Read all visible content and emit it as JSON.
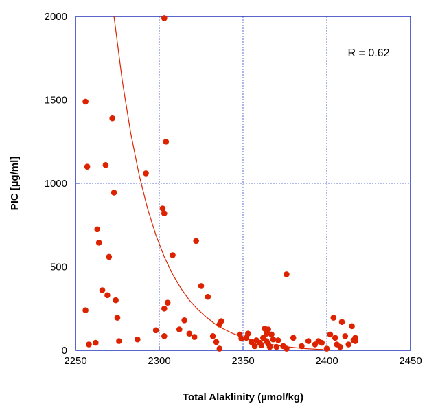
{
  "chart_data": {
    "type": "scatter",
    "title": "",
    "xlabel": "Total Alaklinity (µmol/kg)",
    "ylabel": "PIC [µg/ml]",
    "xlim": [
      2250,
      2450
    ],
    "ylim": [
      0,
      2000
    ],
    "xticks": [
      "2250",
      "2300",
      "2350",
      "2400",
      "2450"
    ],
    "yticks": [
      "0",
      "500",
      "1000",
      "1500",
      "2000"
    ],
    "grid": true,
    "annotation": "R = 0.62",
    "colors": {
      "points": "#dd2200",
      "fit": "#dd2200",
      "grid": "#3344cc",
      "frame": "#2233bb"
    },
    "points": [
      [
        2256,
        1490
      ],
      [
        2257,
        1100
      ],
      [
        2256,
        240
      ],
      [
        2258,
        35
      ],
      [
        2262,
        45
      ],
      [
        2263,
        725
      ],
      [
        2264,
        645
      ],
      [
        2266,
        360
      ],
      [
        2268,
        1110
      ],
      [
        2269,
        330
      ],
      [
        2270,
        560
      ],
      [
        2272,
        1390
      ],
      [
        2273,
        945
      ],
      [
        2274,
        300
      ],
      [
        2275,
        195
      ],
      [
        2276,
        55
      ],
      [
        2287,
        65
      ],
      [
        2292,
        1060
      ],
      [
        2298,
        120
      ],
      [
        2302,
        850
      ],
      [
        2303,
        820
      ],
      [
        2303,
        250
      ],
      [
        2303,
        1990
      ],
      [
        2304,
        1250
      ],
      [
        2303,
        85
      ],
      [
        2305,
        285
      ],
      [
        2308,
        570
      ],
      [
        2312,
        125
      ],
      [
        2315,
        180
      ],
      [
        2318,
        100
      ],
      [
        2321,
        80
      ],
      [
        2322,
        655
      ],
      [
        2325,
        385
      ],
      [
        2329,
        320
      ],
      [
        2332,
        85
      ],
      [
        2334,
        50
      ],
      [
        2336,
        155
      ],
      [
        2337,
        175
      ],
      [
        2336,
        10
      ],
      [
        2348,
        95
      ],
      [
        2349,
        70
      ],
      [
        2352,
        75
      ],
      [
        2353,
        100
      ],
      [
        2355,
        50
      ],
      [
        2357,
        25
      ],
      [
        2358,
        60
      ],
      [
        2360,
        45
      ],
      [
        2361,
        30
      ],
      [
        2362,
        75
      ],
      [
        2363,
        130
      ],
      [
        2364,
        100
      ],
      [
        2364,
        55
      ],
      [
        2365,
        125
      ],
      [
        2365,
        40
      ],
      [
        2366,
        20
      ],
      [
        2367,
        95
      ],
      [
        2368,
        65
      ],
      [
        2370,
        20
      ],
      [
        2371,
        60
      ],
      [
        2374,
        25
      ],
      [
        2376,
        455
      ],
      [
        2376,
        10
      ],
      [
        2380,
        75
      ],
      [
        2385,
        25
      ],
      [
        2389,
        55
      ],
      [
        2393,
        35
      ],
      [
        2395,
        55
      ],
      [
        2397,
        45
      ],
      [
        2400,
        10
      ],
      [
        2402,
        95
      ],
      [
        2404,
        195
      ],
      [
        2405,
        75
      ],
      [
        2406,
        35
      ],
      [
        2408,
        20
      ],
      [
        2409,
        170
      ],
      [
        2411,
        85
      ],
      [
        2413,
        35
      ],
      [
        2415,
        145
      ],
      [
        2416,
        60
      ],
      [
        2417,
        55
      ],
      [
        2417,
        75
      ]
    ],
    "fit": [
      [
        2273,
        2000
      ],
      [
        2278,
        1610
      ],
      [
        2283,
        1300
      ],
      [
        2288,
        1050
      ],
      [
        2293,
        850
      ],
      [
        2298,
        690
      ],
      [
        2303,
        560
      ],
      [
        2308,
        455
      ],
      [
        2313,
        370
      ],
      [
        2318,
        300
      ],
      [
        2323,
        245
      ],
      [
        2328,
        200
      ],
      [
        2333,
        160
      ],
      [
        2338,
        130
      ],
      [
        2343,
        105
      ],
      [
        2348,
        85
      ],
      [
        2353,
        68
      ],
      [
        2358,
        54
      ],
      [
        2363,
        42
      ],
      [
        2368,
        33
      ],
      [
        2373,
        25
      ],
      [
        2378,
        19
      ],
      [
        2383,
        14
      ],
      [
        2388,
        10
      ],
      [
        2393,
        7
      ],
      [
        2398,
        5
      ]
    ]
  }
}
